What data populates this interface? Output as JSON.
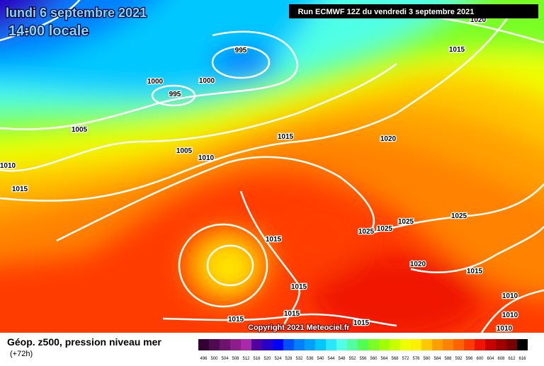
{
  "header": {
    "date": "lundi 6 septembre 2021",
    "time": "14:00 locale",
    "run": "Run ECMWF 12Z du vendredi 3 septembre 2021"
  },
  "isobars": [
    "995",
    "1000",
    "995",
    "1000",
    "1005",
    "1010",
    "1015",
    "1005",
    "1010",
    "1015",
    "1020",
    "1015",
    "1020",
    "1015",
    "1025",
    "1025",
    "1025",
    "1025",
    "1020",
    "1015",
    "1015",
    "1010",
    "1015",
    "1010",
    "1010",
    "1015",
    "1015"
  ],
  "legend": {
    "title": "Géop. z500, pression niveau mer",
    "subtitle": "(+72h)",
    "levels": [
      496,
      500,
      504,
      508,
      512,
      516,
      520,
      524,
      528,
      532,
      536,
      540,
      544,
      548,
      552,
      556,
      560,
      564,
      568,
      572,
      576,
      580,
      584,
      588,
      592,
      596,
      600,
      604,
      608,
      612,
      616
    ],
    "colors": [
      "#320032",
      "#500a50",
      "#6e146e",
      "#8c1e8c",
      "#aa28aa",
      "#5000a0",
      "#2800c8",
      "#0000ff",
      "#0050ff",
      "#0080ff",
      "#00a0ff",
      "#00c8ff",
      "#28e6ff",
      "#50ffe6",
      "#50ffa0",
      "#50ff50",
      "#78ff28",
      "#a0ff00",
      "#c8ff00",
      "#f0ff00",
      "#fff000",
      "#ffc800",
      "#ffa000",
      "#ff8200",
      "#ff6400",
      "#ff3c00",
      "#f01400",
      "#c80000",
      "#a00000",
      "#780000",
      "#000000"
    ]
  },
  "copyright": "Copyright 2021 Meteociel.fr"
}
